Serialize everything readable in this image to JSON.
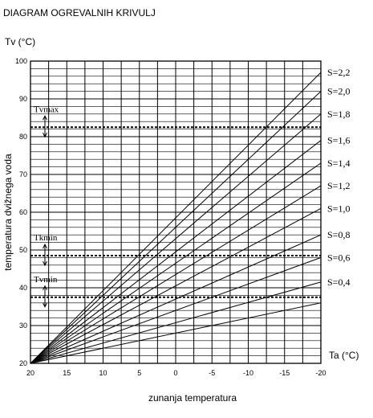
{
  "chart_data": {
    "type": "line",
    "title": "DIAGRAM OGREVALNIH KRIVULJ",
    "ylabel_top": "Tv (°C)",
    "ylabel": "temperatura dvižnega voda",
    "xlabel_right": "Ta (°C)",
    "xlabel": "zunanja temperatura",
    "xlim": [
      20,
      -20
    ],
    "ylim": [
      20,
      100
    ],
    "x_ticks": [
      20,
      15,
      10,
      5,
      0,
      -5,
      -10,
      -15,
      -20
    ],
    "y_ticks": [
      20,
      30,
      40,
      50,
      60,
      70,
      80,
      90,
      100
    ],
    "grid": true,
    "series": [
      {
        "name": "S=2,2",
        "x": [
          20,
          -20
        ],
        "y": [
          20,
          97
        ]
      },
      {
        "name": "S=2,0",
        "x": [
          20,
          -20
        ],
        "y": [
          20,
          92
        ]
      },
      {
        "name": "S=1,8",
        "x": [
          20,
          -20
        ],
        "y": [
          20,
          86
        ]
      },
      {
        "name": "S=1,6",
        "x": [
          20,
          -20
        ],
        "y": [
          20,
          79
        ]
      },
      {
        "name": "S=1,4",
        "x": [
          20,
          -20
        ],
        "y": [
          20,
          73
        ]
      },
      {
        "name": "S=1,2",
        "x": [
          20,
          -20
        ],
        "y": [
          20,
          67
        ]
      },
      {
        "name": "S=1,0",
        "x": [
          20,
          -20
        ],
        "y": [
          20,
          61
        ]
      },
      {
        "name": "S=0,8",
        "x": [
          20,
          -20
        ],
        "y": [
          20,
          54
        ]
      },
      {
        "name": "S=0,6",
        "x": [
          20,
          -20
        ],
        "y": [
          20,
          48
        ]
      },
      {
        "name": "S=0,4",
        "x": [
          20,
          -20
        ],
        "y": [
          20,
          41.5
        ]
      },
      {
        "name": "",
        "x": [
          20,
          -20
        ],
        "y": [
          20,
          36
        ]
      }
    ],
    "reference_lines": [
      {
        "label": "Tvmax",
        "y": 82.5
      },
      {
        "label": "Tkmin",
        "y": 48.5
      },
      {
        "label": "Tvmin",
        "y": 37.5
      }
    ]
  }
}
